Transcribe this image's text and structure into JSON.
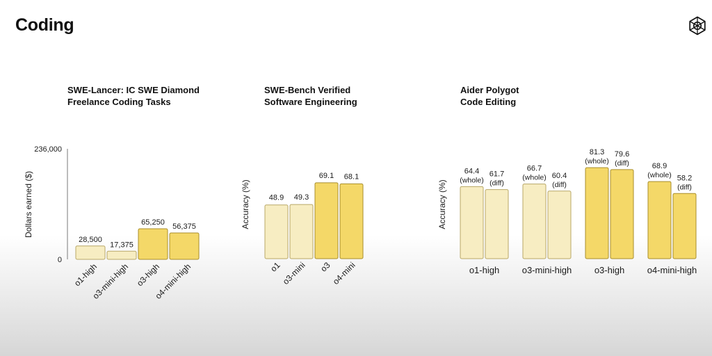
{
  "slide": {
    "title": "Coding"
  },
  "logo": {
    "icon": "openai-logo-icon"
  },
  "colors": {
    "light_fill": "#F7EDC2",
    "light_stroke": "#B8A767",
    "dark_fill": "#F4D868",
    "dark_stroke": "#A88E2C",
    "axis": "#7a7a7a"
  },
  "chart_data": [
    {
      "type": "bar",
      "title_lines": [
        "SWE-Lancer: IC SWE Diamond",
        "Freelance Coding Tasks"
      ],
      "ylabel": "Dollars earned ($)",
      "ylim": [
        0,
        236000
      ],
      "ytick_labels": [
        "236,000",
        "0"
      ],
      "categories": [
        "o1-high",
        "o3-mini-high",
        "o3-high",
        "o4-mini-high"
      ],
      "values": [
        28500,
        17375,
        65250,
        56375
      ],
      "value_labels": [
        "28,500",
        "17,375",
        "65,250",
        "56,375"
      ],
      "shades": [
        "light",
        "light",
        "dark",
        "dark"
      ]
    },
    {
      "type": "bar",
      "title_lines": [
        "SWE-Bench Verified",
        "Software Engineering"
      ],
      "ylabel": "Accuracy (%)",
      "ylim": [
        0,
        100
      ],
      "categories": [
        "o1",
        "o3-mini",
        "o3",
        "o4-mini"
      ],
      "values": [
        48.9,
        49.3,
        69.1,
        68.1
      ],
      "value_labels": [
        "48.9",
        "49.3",
        "69.1",
        "68.1"
      ],
      "shades": [
        "light",
        "light",
        "dark",
        "dark"
      ]
    },
    {
      "type": "bar",
      "title_lines": [
        "Aider Polygot",
        "Code Editing"
      ],
      "ylabel": "Accuracy (%)",
      "ylim": [
        0,
        100
      ],
      "categories": [
        "o1-high",
        "o3-mini-high",
        "o3-high",
        "o4-mini-high"
      ],
      "series": [
        {
          "name": "(whole)",
          "values": [
            64.4,
            66.7,
            81.3,
            68.9
          ],
          "value_labels": [
            "64.4",
            "66.7",
            "81.3",
            "68.9"
          ]
        },
        {
          "name": "(diff)",
          "values": [
            61.7,
            60.4,
            79.6,
            58.2
          ],
          "value_labels": [
            "61.7",
            "60.4",
            "79.6",
            "58.2"
          ]
        }
      ],
      "shades": [
        "light",
        "light",
        "dark",
        "dark"
      ]
    }
  ]
}
